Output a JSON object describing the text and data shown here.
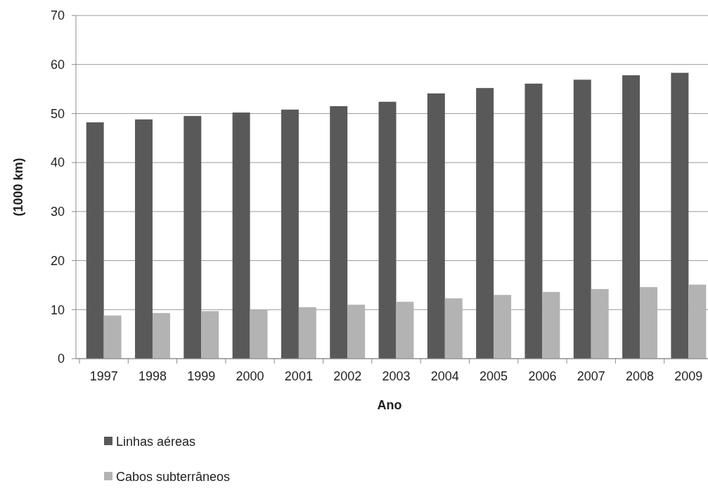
{
  "chart_data": {
    "type": "bar",
    "xlabel": "Ano",
    "ylabel": "(1000 km)",
    "categories": [
      "1997",
      "1998",
      "1999",
      "2000",
      "2001",
      "2002",
      "2003",
      "2004",
      "2005",
      "2006",
      "2007",
      "2008",
      "2009"
    ],
    "series": [
      {
        "name": "Linhas aéreas",
        "color": "#595959",
        "values": [
          48.2,
          48.8,
          49.5,
          50.2,
          50.8,
          51.5,
          52.4,
          54.1,
          55.2,
          56.1,
          56.9,
          57.8,
          58.3
        ]
      },
      {
        "name": "Cabos subterrâneos",
        "color": "#b3b3b3",
        "values": [
          8.8,
          9.3,
          9.7,
          10.0,
          10.5,
          11.0,
          11.6,
          12.3,
          13.0,
          13.6,
          14.2,
          14.6,
          15.1
        ]
      }
    ],
    "ylim": [
      0,
      70
    ],
    "yticks": [
      0,
      10,
      20,
      30,
      40,
      50,
      60,
      70
    ],
    "grid": "y",
    "legend": "bottom"
  }
}
